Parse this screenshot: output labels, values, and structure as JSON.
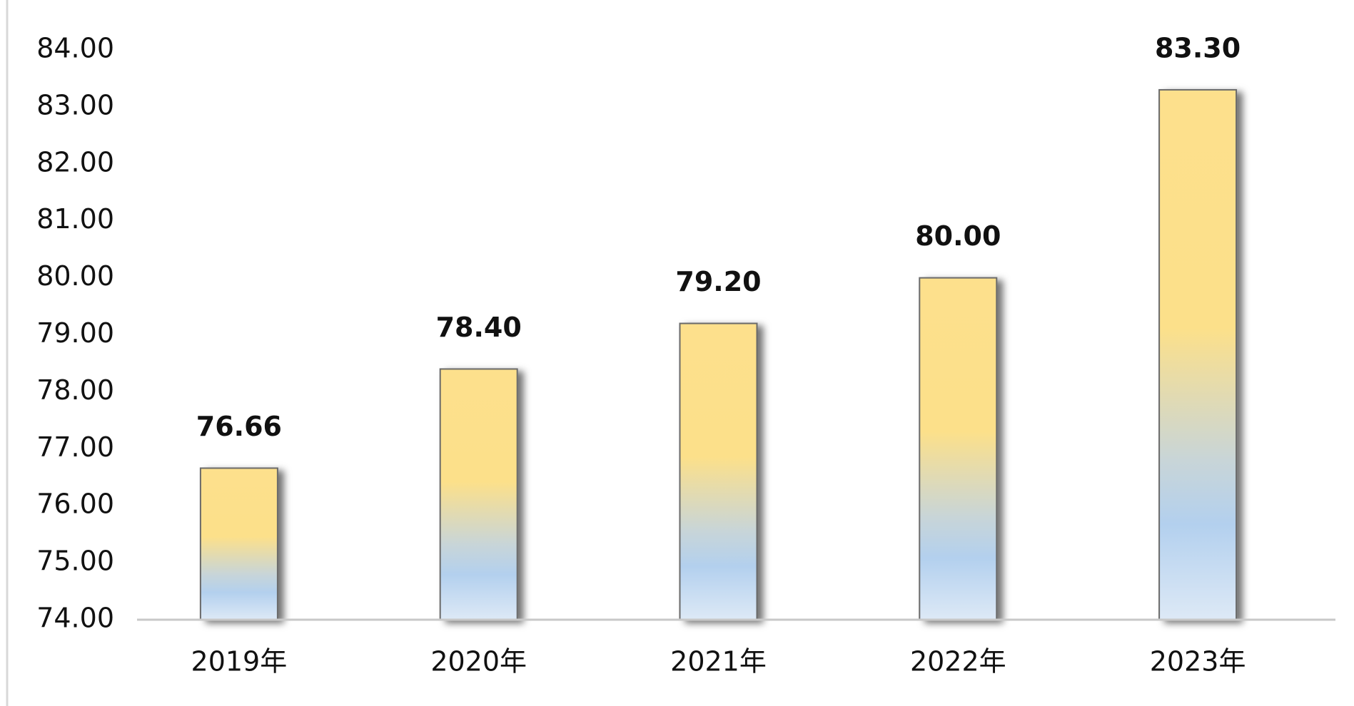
{
  "chart_data": {
    "type": "bar",
    "categories": [
      "2019年",
      "2020年",
      "2021年",
      "2022年",
      "2023年"
    ],
    "values": [
      76.66,
      78.4,
      79.2,
      80,
      83.3
    ],
    "value_labels": [
      "76.66",
      "78.40",
      "79.20",
      "80.00",
      "83.30"
    ],
    "ylim": [
      74,
      84
    ],
    "yticks": [
      {
        "value": 74,
        "label": "74.00"
      },
      {
        "value": 75,
        "label": "75.00"
      },
      {
        "value": 76,
        "label": "76.00"
      },
      {
        "value": 77,
        "label": "77.00"
      },
      {
        "value": 78,
        "label": "78.00"
      },
      {
        "value": 79,
        "label": "79.00"
      },
      {
        "value": 80,
        "label": "80.00"
      },
      {
        "value": 81,
        "label": "81.00"
      },
      {
        "value": 82,
        "label": "82.00"
      },
      {
        "value": 83,
        "label": "83.00"
      },
      {
        "value": 84,
        "label": "84.00"
      }
    ],
    "grid": false
  }
}
